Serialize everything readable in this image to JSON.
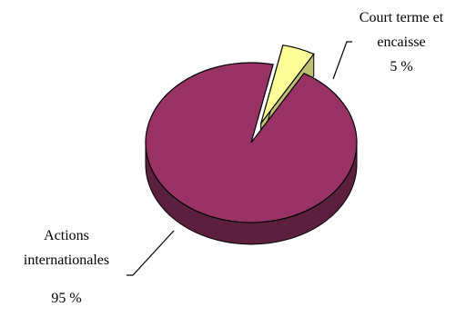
{
  "chart_data": {
    "type": "pie",
    "style": "3d",
    "title": "",
    "slices": [
      {
        "label_lines": [
          "Court terme et",
          "encaisse"
        ],
        "value_text": "5 %",
        "value": 5,
        "color": "#ffff99",
        "exploded": true
      },
      {
        "label_lines": [
          "Actions",
          "internationales"
        ],
        "value_text": "95  %",
        "value": 95,
        "color": "#993366",
        "exploded": false
      }
    ]
  }
}
